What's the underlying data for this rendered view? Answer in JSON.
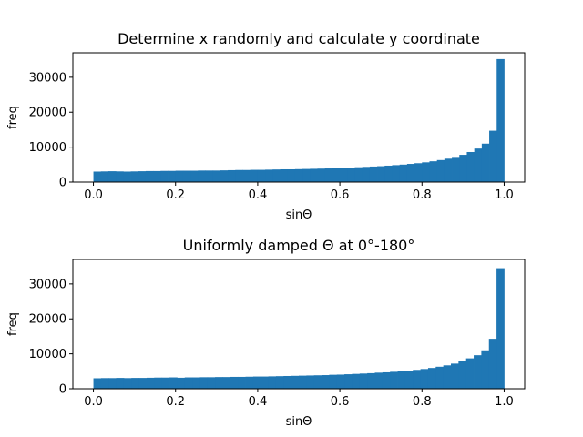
{
  "chart_data": [
    {
      "type": "bar",
      "title": "Determine x randomly and calculate y coordinate",
      "xlabel": "sinΘ",
      "ylabel": "freq",
      "xlim": [
        -0.05,
        1.05
      ],
      "ylim": [
        0,
        37000
      ],
      "grid": false,
      "xticks": [
        0.0,
        0.2,
        0.4,
        0.6,
        0.8,
        1.0
      ],
      "xtick_labels": [
        "0.0",
        "0.2",
        "0.4",
        "0.6",
        "0.8",
        "1.0"
      ],
      "yticks": [
        0,
        10000,
        20000,
        30000
      ],
      "ytick_labels": [
        "0",
        "10000",
        "20000",
        "30000"
      ],
      "bin_range": [
        0.0,
        1.0
      ],
      "values": [
        3000,
        3050,
        3100,
        3050,
        3000,
        3050,
        3100,
        3150,
        3150,
        3200,
        3200,
        3250,
        3250,
        3250,
        3300,
        3300,
        3300,
        3350,
        3400,
        3450,
        3450,
        3500,
        3500,
        3550,
        3600,
        3650,
        3650,
        3700,
        3750,
        3800,
        3850,
        3900,
        4000,
        4050,
        4150,
        4250,
        4350,
        4450,
        4550,
        4700,
        4850,
        5000,
        5200,
        5400,
        5650,
        5950,
        6300,
        6700,
        7200,
        7800,
        8600,
        9600,
        11000,
        14700,
        35200
      ]
    },
    {
      "type": "bar",
      "title": "Uniformly damped Θ at 0°-180°",
      "xlabel": "sinΘ",
      "ylabel": "freq",
      "xlim": [
        -0.05,
        1.05
      ],
      "ylim": [
        0,
        37000
      ],
      "grid": false,
      "xticks": [
        0.0,
        0.2,
        0.4,
        0.6,
        0.8,
        1.0
      ],
      "xtick_labels": [
        "0.0",
        "0.2",
        "0.4",
        "0.6",
        "0.8",
        "1.0"
      ],
      "yticks": [
        0,
        10000,
        20000,
        30000
      ],
      "ytick_labels": [
        "0",
        "10000",
        "20000",
        "30000"
      ],
      "bin_range": [
        0.0,
        1.0
      ],
      "values": [
        3000,
        3050,
        3050,
        3100,
        3050,
        3100,
        3100,
        3150,
        3200,
        3200,
        3250,
        3150,
        3250,
        3250,
        3300,
        3300,
        3350,
        3350,
        3400,
        3400,
        3450,
        3500,
        3500,
        3550,
        3600,
        3650,
        3700,
        3750,
        3800,
        3850,
        3900,
        4000,
        4050,
        4150,
        4250,
        4350,
        4450,
        4600,
        4700,
        4850,
        5000,
        5200,
        5400,
        5650,
        5950,
        6300,
        6700,
        7200,
        7900,
        8700,
        9600,
        11000,
        14300,
        34500
      ]
    }
  ],
  "colors": {
    "bar": "#1f77b4"
  }
}
